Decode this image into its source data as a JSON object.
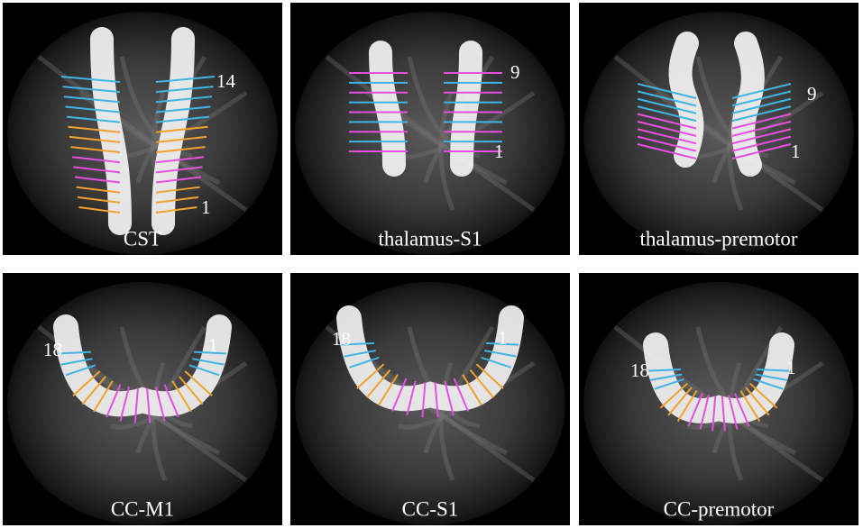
{
  "panels": [
    {
      "title": "CST",
      "top_label": "14",
      "bottom_label": "1"
    },
    {
      "title": "thalamus-S1",
      "top_label": "9",
      "bottom_label": "1"
    },
    {
      "title": "thalamus-premotor",
      "top_label": "9",
      "bottom_label": "1"
    },
    {
      "title": "CC-M1",
      "left_label": "18",
      "right_label": "1"
    },
    {
      "title": "CC-S1",
      "left_label": "18",
      "right_label": "1"
    },
    {
      "title": "CC-premotor",
      "left_label": "18",
      "right_label": "1"
    }
  ]
}
